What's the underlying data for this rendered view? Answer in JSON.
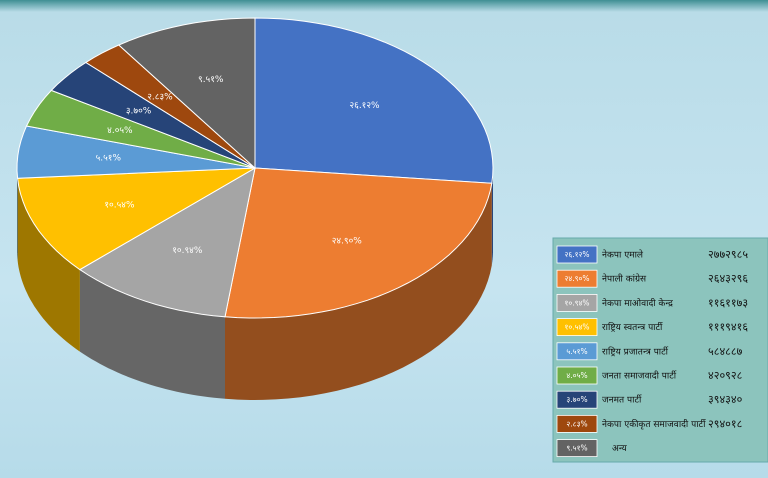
{
  "chart_data": {
    "type": "pie",
    "categories": [
      "नेकपा एमाले",
      "नेपाली कांग्रेस",
      "नेकपा माओवादी केन्द्र",
      "राष्ट्रिय स्वतन्त्र पार्टी",
      "राष्ट्रिय प्रजातन्त्र पार्टी",
      "जनता समाजवादी पार्टी",
      "जनमत पार्टी",
      "नेकपा एकीकृत समाजवादी पार्टी",
      "अन्य"
    ],
    "values": [
      26.12,
      24.9,
      10.94,
      10.54,
      5.51,
      4.05,
      3.7,
      2.83,
      9.51
    ],
    "value_labels": [
      "२६.१२%",
      "२४.९०%",
      "१०.९४%",
      "१०.५४%",
      "५.५१%",
      "४.०५%",
      "३.७०%",
      "२.८३%",
      "९.५१%"
    ],
    "votes": [
      "२७७२९८५",
      "२६४३२९६",
      "११६११७३",
      "१११९४१६",
      "५८४८८७",
      "४२०९२८",
      "३९४३४०",
      "२९४०१८"
    ],
    "colors": [
      "#4472c4",
      "#ed7d31",
      "#a5a5a5",
      "#ffc000",
      "#5b9bd5",
      "#70ad47",
      "#264478",
      "#9e480e",
      "#636363"
    ]
  }
}
